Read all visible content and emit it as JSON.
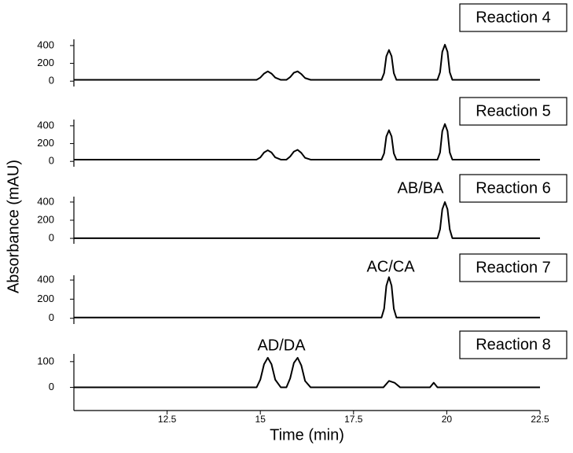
{
  "ylabel": "Absorbance (mAU)",
  "chart_data": [
    {
      "type": "line",
      "title": "Reaction 4",
      "xlim": [
        10,
        22.5
      ],
      "ylim": [
        -60,
        470
      ],
      "yticks": [
        0,
        200,
        400
      ],
      "series": [
        {
          "color": "#000000",
          "x": [
            10,
            14.9,
            15.0,
            15.1,
            15.2,
            15.3,
            15.4,
            15.55,
            15.7,
            15.8,
            15.9,
            16.0,
            16.1,
            16.2,
            16.35,
            18.25,
            18.32,
            18.38,
            18.45,
            18.52,
            18.58,
            18.65,
            19.75,
            19.82,
            19.88,
            19.95,
            20.02,
            20.08,
            20.15,
            22.5
          ],
          "values": [
            15,
            15,
            40,
            85,
            110,
            85,
            40,
            15,
            15,
            45,
            95,
            110,
            80,
            35,
            15,
            15,
            90,
            280,
            350,
            280,
            90,
            15,
            15,
            100,
            330,
            410,
            330,
            100,
            15,
            15
          ]
        }
      ]
    },
    {
      "type": "line",
      "title": "Reaction 5",
      "xlim": [
        10,
        22.5
      ],
      "ylim": [
        -60,
        470
      ],
      "yticks": [
        0,
        200,
        400
      ],
      "series": [
        {
          "color": "#000000",
          "x": [
            10,
            14.9,
            15.0,
            15.1,
            15.2,
            15.3,
            15.4,
            15.55,
            15.7,
            15.8,
            15.9,
            16.0,
            16.1,
            16.2,
            16.35,
            18.25,
            18.32,
            18.38,
            18.45,
            18.52,
            18.58,
            18.65,
            19.75,
            19.82,
            19.88,
            19.95,
            20.02,
            20.08,
            20.15,
            22.5
          ],
          "values": [
            20,
            20,
            45,
            100,
            125,
            100,
            45,
            20,
            20,
            55,
            110,
            130,
            95,
            40,
            20,
            20,
            90,
            280,
            350,
            280,
            90,
            20,
            20,
            100,
            340,
            420,
            340,
            100,
            20,
            20
          ]
        }
      ]
    },
    {
      "type": "line",
      "title": "Reaction 6",
      "annotation": "AB/BA",
      "xlim": [
        10,
        22.5
      ],
      "ylim": [
        -60,
        460
      ],
      "yticks": [
        0,
        200,
        400
      ],
      "series": [
        {
          "color": "#000000",
          "x": [
            10,
            19.75,
            19.82,
            19.88,
            19.95,
            20.02,
            20.08,
            20.15,
            22.5
          ],
          "values": [
            2,
            2,
            100,
            320,
            400,
            320,
            100,
            2,
            2
          ]
        }
      ]
    },
    {
      "type": "line",
      "title": "Reaction 7",
      "annotation": "AC/CA",
      "xlim": [
        10,
        22.5
      ],
      "ylim": [
        -60,
        450
      ],
      "yticks": [
        0,
        200,
        400
      ],
      "series": [
        {
          "color": "#000000",
          "x": [
            10,
            18.25,
            18.32,
            18.38,
            18.45,
            18.52,
            18.58,
            18.65,
            22.5
          ],
          "values": [
            8,
            8,
            100,
            340,
            430,
            340,
            100,
            8,
            8
          ]
        }
      ]
    },
    {
      "type": "line",
      "title": "Reaction 8",
      "annotation": "AD/DA",
      "xlabel": "Time (min)",
      "xlim": [
        10,
        22.5
      ],
      "ylim": [
        -90,
        130
      ],
      "yticks": [
        0,
        100
      ],
      "xticks": [
        12.5,
        15,
        17.5,
        20,
        22.5
      ],
      "series": [
        {
          "color": "#000000",
          "x": [
            10,
            14.9,
            15.0,
            15.1,
            15.2,
            15.3,
            15.4,
            15.55,
            15.7,
            15.8,
            15.9,
            16.0,
            16.1,
            16.2,
            16.35,
            18.3,
            18.45,
            18.6,
            18.75,
            19.55,
            19.65,
            19.75,
            22.5
          ],
          "values": [
            0,
            0,
            30,
            90,
            115,
            90,
            30,
            0,
            0,
            35,
            95,
            115,
            85,
            25,
            0,
            0,
            25,
            18,
            0,
            0,
            18,
            0,
            0
          ]
        }
      ]
    }
  ]
}
